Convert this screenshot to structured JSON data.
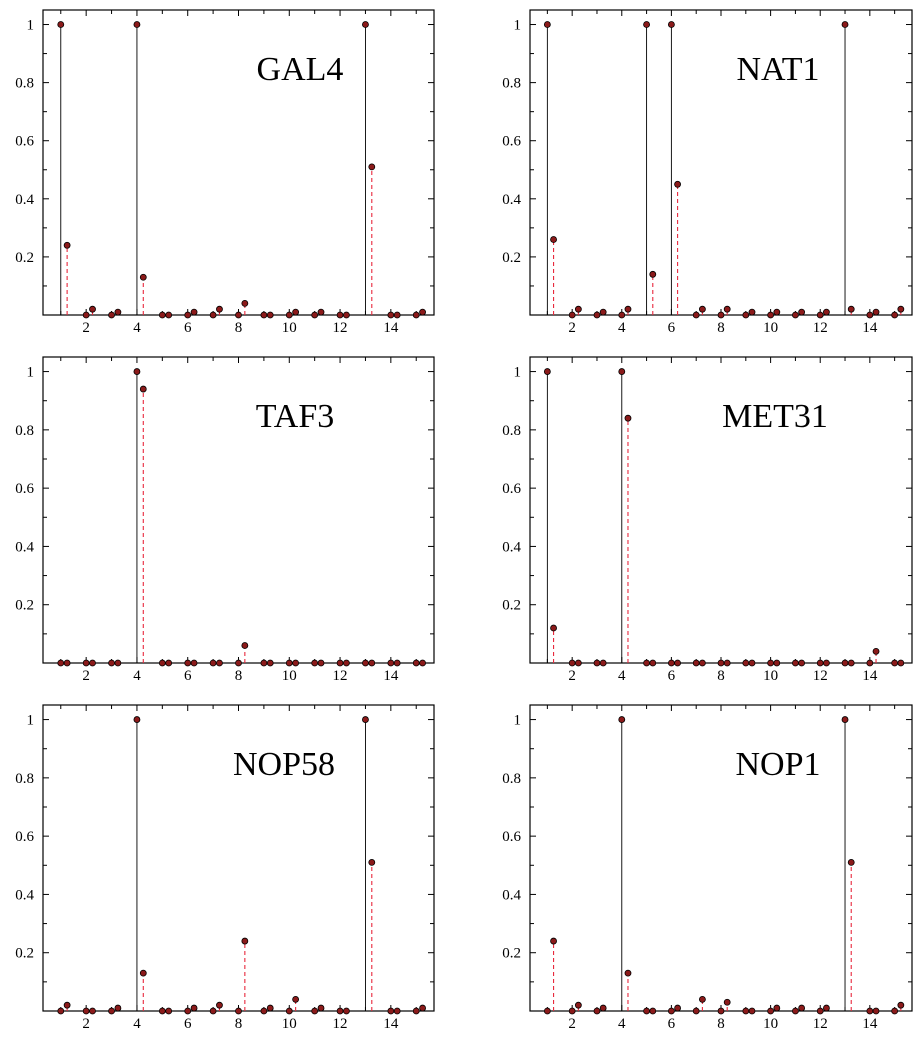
{
  "figure": {
    "background": "#ffffff"
  },
  "style": {
    "axis_color": "#000000",
    "stem_a_color": "#000000",
    "stem_b_color": "#e8283c",
    "marker_fill": "#8b1a1a",
    "marker_edge": "#000000"
  },
  "chart_data": [
    {
      "type": "stem",
      "title": "GAL4",
      "xlim": [
        0.3,
        15.7
      ],
      "ylim": [
        0,
        1.05
      ],
      "xticks": [
        "2",
        "4",
        "6",
        "8",
        "10",
        "12",
        "14"
      ],
      "yticks": [
        "0.2",
        "0.4",
        "0.6",
        "0.8",
        "1"
      ],
      "grid": false,
      "series": [
        {
          "style": "solid",
          "x": [
            1,
            2,
            3,
            4,
            5,
            6,
            7,
            8,
            9,
            10,
            11,
            12,
            13,
            14,
            15
          ],
          "values": [
            1,
            0,
            0,
            1,
            0,
            0,
            0,
            0,
            0,
            0,
            0,
            0,
            1,
            0,
            0
          ]
        },
        {
          "style": "dashed",
          "x": [
            1.25,
            2.25,
            3.25,
            4.25,
            5.25,
            6.25,
            7.25,
            8.25,
            9.25,
            10.25,
            11.25,
            12.25,
            13.25,
            14.25,
            15.25
          ],
          "values": [
            0.24,
            0.02,
            0.01,
            0.13,
            0,
            0.01,
            0.02,
            0.04,
            0,
            0.01,
            0.01,
            0,
            0.51,
            0,
            0.01
          ]
        }
      ]
    },
    {
      "type": "stem",
      "title": "NAT1",
      "xlim": [
        0.3,
        15.7
      ],
      "ylim": [
        0,
        1.05
      ],
      "xticks": [
        "2",
        "4",
        "6",
        "8",
        "10",
        "12",
        "14"
      ],
      "yticks": [
        "0.2",
        "0.4",
        "0.6",
        "0.8",
        "1"
      ],
      "grid": false,
      "series": [
        {
          "style": "solid",
          "x": [
            1,
            2,
            3,
            4,
            5,
            6,
            7,
            8,
            9,
            10,
            11,
            12,
            13,
            14,
            15
          ],
          "values": [
            1,
            0,
            0,
            0,
            1,
            1,
            0,
            0,
            0,
            0,
            0,
            0,
            1,
            0,
            0
          ]
        },
        {
          "style": "dashed",
          "x": [
            1.25,
            2.25,
            3.25,
            4.25,
            5.25,
            6.25,
            7.25,
            8.25,
            9.25,
            10.25,
            11.25,
            12.25,
            13.25,
            14.25,
            15.25
          ],
          "values": [
            0.26,
            0.02,
            0.01,
            0.02,
            0.14,
            0.45,
            0.02,
            0.02,
            0.01,
            0.01,
            0.01,
            0.01,
            0.02,
            0.01,
            0.02
          ]
        }
      ]
    },
    {
      "type": "stem",
      "title": "TAF3",
      "xlim": [
        0.3,
        15.7
      ],
      "ylim": [
        0,
        1.05
      ],
      "xticks": [
        "2",
        "4",
        "6",
        "8",
        "10",
        "12",
        "14"
      ],
      "yticks": [
        "0.2",
        "0.4",
        "0.6",
        "0.8",
        "1"
      ],
      "grid": false,
      "series": [
        {
          "style": "solid",
          "x": [
            1,
            2,
            3,
            4,
            5,
            6,
            7,
            8,
            9,
            10,
            11,
            12,
            13,
            14,
            15
          ],
          "values": [
            0,
            0,
            0,
            1,
            0,
            0,
            0,
            0,
            0,
            0,
            0,
            0,
            0,
            0,
            0
          ]
        },
        {
          "style": "dashed",
          "x": [
            1.25,
            2.25,
            3.25,
            4.25,
            5.25,
            6.25,
            7.25,
            8.25,
            9.25,
            10.25,
            11.25,
            12.25,
            13.25,
            14.25,
            15.25
          ],
          "values": [
            0,
            0,
            0,
            0.94,
            0,
            0,
            0,
            0.06,
            0,
            0,
            0,
            0,
            0,
            0,
            0
          ]
        }
      ]
    },
    {
      "type": "stem",
      "title": "MET31",
      "xlim": [
        0.3,
        15.7
      ],
      "ylim": [
        0,
        1.05
      ],
      "xticks": [
        "2",
        "4",
        "6",
        "8",
        "10",
        "12",
        "14"
      ],
      "yticks": [
        "0.2",
        "0.4",
        "0.6",
        "0.8",
        "1"
      ],
      "grid": false,
      "series": [
        {
          "style": "solid",
          "x": [
            1,
            2,
            3,
            4,
            5,
            6,
            7,
            8,
            9,
            10,
            11,
            12,
            13,
            14,
            15
          ],
          "values": [
            1,
            0,
            0,
            1,
            0,
            0,
            0,
            0,
            0,
            0,
            0,
            0,
            0,
            0,
            0
          ]
        },
        {
          "style": "dashed",
          "x": [
            1.25,
            2.25,
            3.25,
            4.25,
            5.25,
            6.25,
            7.25,
            8.25,
            9.25,
            10.25,
            11.25,
            12.25,
            13.25,
            14.25,
            15.25
          ],
          "values": [
            0.12,
            0,
            0,
            0.84,
            0,
            0,
            0,
            0,
            0,
            0,
            0,
            0,
            0,
            0.04,
            0
          ]
        }
      ]
    },
    {
      "type": "stem",
      "title": "NOP58",
      "xlim": [
        0.3,
        15.7
      ],
      "ylim": [
        0,
        1.05
      ],
      "xticks": [
        "2",
        "4",
        "6",
        "8",
        "10",
        "12",
        "14"
      ],
      "yticks": [
        "0.2",
        "0.4",
        "0.6",
        "0.8",
        "1"
      ],
      "grid": false,
      "series": [
        {
          "style": "solid",
          "x": [
            1,
            2,
            3,
            4,
            5,
            6,
            7,
            8,
            9,
            10,
            11,
            12,
            13,
            14,
            15
          ],
          "values": [
            0,
            0,
            0,
            1,
            0,
            0,
            0,
            0,
            0,
            0,
            0,
            0,
            1,
            0,
            0
          ]
        },
        {
          "style": "dashed",
          "x": [
            1.25,
            2.25,
            3.25,
            4.25,
            5.25,
            6.25,
            7.25,
            8.25,
            9.25,
            10.25,
            11.25,
            12.25,
            13.25,
            14.25,
            15.25
          ],
          "values": [
            0.02,
            0,
            0.01,
            0.13,
            0,
            0.01,
            0.02,
            0.24,
            0.01,
            0.04,
            0.01,
            0,
            0.51,
            0,
            0.01
          ]
        }
      ]
    },
    {
      "type": "stem",
      "title": "NOP1",
      "xlim": [
        0.3,
        15.7
      ],
      "ylim": [
        0,
        1.05
      ],
      "xticks": [
        "2",
        "4",
        "6",
        "8",
        "10",
        "12",
        "14"
      ],
      "yticks": [
        "0.2",
        "0.4",
        "0.6",
        "0.8",
        "1"
      ],
      "grid": false,
      "series": [
        {
          "style": "solid",
          "x": [
            1,
            2,
            3,
            4,
            5,
            6,
            7,
            8,
            9,
            10,
            11,
            12,
            13,
            14,
            15
          ],
          "values": [
            0,
            0,
            0,
            1,
            0,
            0,
            0,
            0,
            0,
            0,
            0,
            0,
            1,
            0,
            0
          ]
        },
        {
          "style": "dashed",
          "x": [
            1.25,
            2.25,
            3.25,
            4.25,
            5.25,
            6.25,
            7.25,
            8.25,
            9.25,
            10.25,
            11.25,
            12.25,
            13.25,
            14.25,
            15.25
          ],
          "values": [
            0.24,
            0.02,
            0.01,
            0.13,
            0,
            0.01,
            0.04,
            0.03,
            0,
            0.01,
            0.01,
            0.01,
            0.51,
            0,
            0.02
          ]
        }
      ]
    }
  ]
}
